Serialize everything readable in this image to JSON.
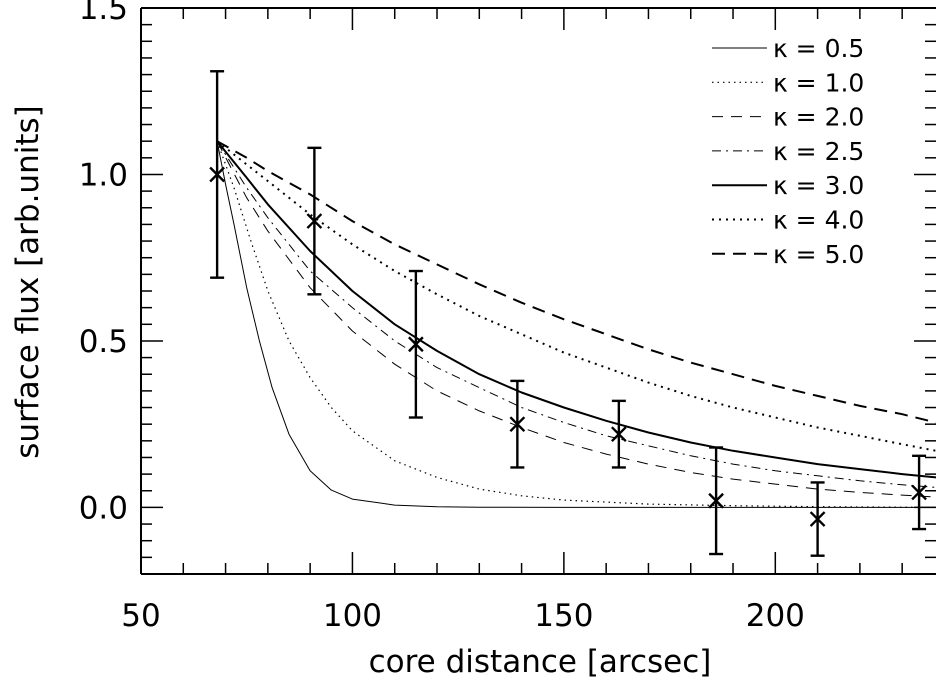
{
  "chart_data": {
    "type": "line",
    "xlabel": "core distance [arcsec]",
    "ylabel": "surface flux [arb.units]",
    "xlim": [
      50,
      238
    ],
    "ylim": [
      -0.2,
      1.5
    ],
    "x_ticks": [
      "50",
      "100",
      "150",
      "200"
    ],
    "y_ticks": [
      "0.0",
      "0.5",
      "1.0",
      "1.5"
    ],
    "legend_position": "top-right",
    "series": [
      {
        "name": "κ = 0.5",
        "style": "solid-thin",
        "x": [
          68,
          70,
          72,
          75,
          78,
          81,
          85,
          90,
          95,
          100,
          110,
          120,
          130,
          150,
          238
        ],
        "y": [
          1.1,
          0.97,
          0.85,
          0.66,
          0.5,
          0.36,
          0.22,
          0.11,
          0.052,
          0.025,
          0.007,
          0.002,
          0.0005,
          0.0,
          0.0
        ]
      },
      {
        "name": "κ = 1.0",
        "style": "dotted-thin",
        "x": [
          68,
          72,
          76,
          80,
          85,
          90,
          95,
          100,
          110,
          120,
          130,
          140,
          150,
          170,
          190,
          210,
          238
        ],
        "y": [
          1.1,
          0.96,
          0.8,
          0.65,
          0.5,
          0.39,
          0.3,
          0.23,
          0.14,
          0.09,
          0.055,
          0.035,
          0.022,
          0.01,
          0.005,
          0.002,
          0.0
        ]
      },
      {
        "name": "κ = 2.0",
        "style": "dashed-thin",
        "x": [
          68,
          75,
          80,
          90,
          100,
          110,
          120,
          130,
          140,
          150,
          160,
          170,
          180,
          190,
          200,
          210,
          220,
          230,
          238
        ],
        "y": [
          1.1,
          0.93,
          0.83,
          0.66,
          0.53,
          0.43,
          0.35,
          0.29,
          0.24,
          0.195,
          0.16,
          0.13,
          0.105,
          0.085,
          0.07,
          0.055,
          0.045,
          0.037,
          0.031
        ]
      },
      {
        "name": "κ = 2.5",
        "style": "dashdot-thin",
        "x": [
          68,
          75,
          80,
          90,
          100,
          110,
          120,
          130,
          140,
          150,
          160,
          170,
          180,
          190,
          200,
          210,
          220,
          230,
          238
        ],
        "y": [
          1.1,
          0.96,
          0.87,
          0.71,
          0.6,
          0.5,
          0.42,
          0.36,
          0.3,
          0.255,
          0.215,
          0.185,
          0.155,
          0.13,
          0.11,
          0.095,
          0.08,
          0.068,
          0.06
        ]
      },
      {
        "name": "κ = 3.0",
        "style": "solid-thick",
        "x": [
          68,
          75,
          80,
          90,
          100,
          110,
          120,
          130,
          140,
          150,
          160,
          170,
          180,
          190,
          200,
          210,
          220,
          230,
          238
        ],
        "y": [
          1.1,
          0.99,
          0.91,
          0.77,
          0.65,
          0.55,
          0.47,
          0.4,
          0.345,
          0.3,
          0.26,
          0.225,
          0.195,
          0.17,
          0.15,
          0.13,
          0.115,
          0.1,
          0.09
        ]
      },
      {
        "name": "κ = 4.0",
        "style": "dotted-thick",
        "x": [
          68,
          75,
          80,
          90,
          100,
          110,
          120,
          130,
          140,
          150,
          160,
          170,
          180,
          190,
          200,
          210,
          220,
          230,
          238
        ],
        "y": [
          1.1,
          1.03,
          0.98,
          0.88,
          0.79,
          0.71,
          0.64,
          0.575,
          0.52,
          0.465,
          0.42,
          0.375,
          0.335,
          0.3,
          0.27,
          0.24,
          0.215,
          0.19,
          0.17
        ]
      },
      {
        "name": "κ = 5.0",
        "style": "dashed-thick",
        "x": [
          68,
          75,
          80,
          90,
          100,
          110,
          120,
          130,
          140,
          150,
          160,
          170,
          180,
          190,
          200,
          210,
          220,
          230,
          238
        ],
        "y": [
          1.1,
          1.05,
          1.01,
          0.94,
          0.86,
          0.79,
          0.73,
          0.67,
          0.615,
          0.565,
          0.52,
          0.475,
          0.435,
          0.4,
          0.365,
          0.335,
          0.305,
          0.28,
          0.255
        ]
      }
    ],
    "observations": {
      "x": [
        68,
        91,
        115,
        139,
        163,
        186,
        210,
        234
      ],
      "y": [
        1.0,
        0.86,
        0.49,
        0.25,
        0.22,
        0.02,
        -0.035,
        0.045
      ],
      "err": [
        0.31,
        0.22,
        0.22,
        0.13,
        0.1,
        0.16,
        0.11,
        0.11
      ]
    }
  }
}
